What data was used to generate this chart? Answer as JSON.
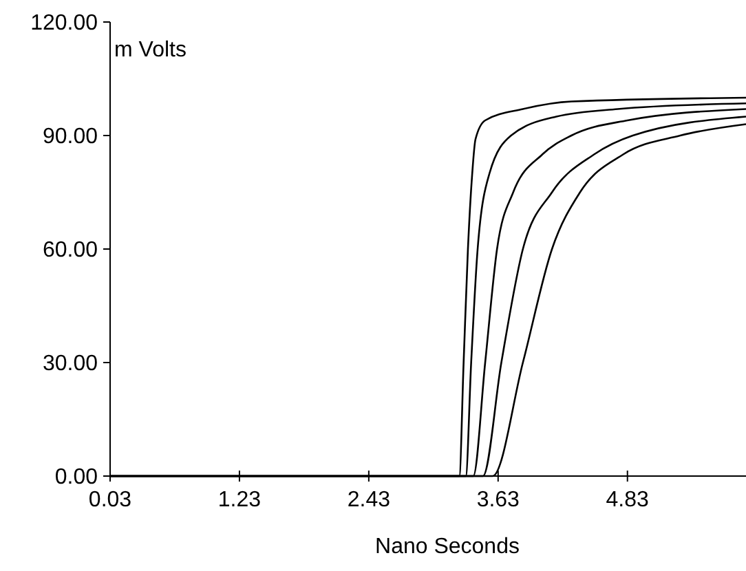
{
  "chart_data": {
    "type": "line",
    "xlabel": "Nano Seconds",
    "ylabel": "m Volts",
    "xlim": [
      0.03,
      5.93
    ],
    "ylim": [
      0,
      120
    ],
    "xticks": [
      0.03,
      1.23,
      2.43,
      3.63,
      4.83
    ],
    "yticks": [
      {
        "value": 0,
        "label": "0.00"
      },
      {
        "value": 30,
        "label": "30.00"
      },
      {
        "value": 60,
        "label": "60.00"
      },
      {
        "value": 90,
        "label": "90.00"
      },
      {
        "value": 120,
        "label": "120.00"
      }
    ],
    "grid": false,
    "marker": "none",
    "line_style": "solid",
    "series": [
      {
        "color": "#000000",
        "x": [
          0.03,
          3.27,
          3.31,
          3.35,
          3.39,
          3.42,
          3.51,
          3.86,
          4.31,
          5.93
        ],
        "values": [
          0,
          0,
          30,
          60,
          80,
          89,
          94,
          97,
          99,
          100
        ]
      },
      {
        "color": "#000000",
        "x": [
          0.03,
          3.33,
          3.38,
          3.44,
          3.55,
          3.75,
          4.17,
          4.74,
          5.93
        ],
        "values": [
          0,
          0,
          30,
          60,
          80,
          90,
          95,
          97,
          98.5
        ]
      },
      {
        "color": "#000000",
        "x": [
          0.03,
          3.4,
          3.51,
          3.62,
          3.77,
          4.04,
          4.31,
          4.83,
          5.93
        ],
        "values": [
          0,
          0,
          30,
          60,
          75,
          85,
          90,
          94,
          97
        ]
      },
      {
        "color": "#000000",
        "x": [
          0.03,
          3.49,
          3.66,
          3.86,
          4.13,
          4.52,
          4.88,
          5.93
        ],
        "values": [
          0,
          0,
          30,
          60,
          75,
          85,
          90,
          95
        ]
      },
      {
        "color": "#000000",
        "x": [
          0.03,
          3.58,
          3.86,
          4.13,
          4.39,
          4.79,
          5.32,
          5.93
        ],
        "values": [
          0,
          0,
          30,
          60,
          75,
          85,
          90,
          93
        ]
      }
    ]
  }
}
